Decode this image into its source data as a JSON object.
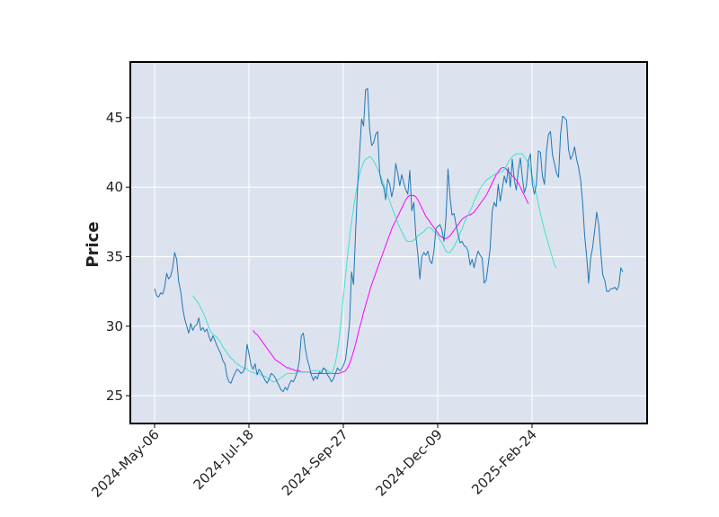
{
  "chart_data": {
    "type": "line",
    "title": "",
    "xlabel": "",
    "ylabel": "Price",
    "x_tick_labels": [
      "2024-May-06",
      "2024-Jul-18",
      "2024-Sep-27",
      "2024-Dec-09",
      "2025-Feb-24"
    ],
    "y_ticks": [
      25,
      30,
      35,
      40,
      45
    ],
    "ylim": [
      23,
      49
    ],
    "grid": true,
    "legend": "none",
    "colors": {
      "background": "#dde3ee",
      "grid": "#ffffff",
      "price": "#1f77b4",
      "ma_short": "#40e0d0",
      "ma_long": "#ff00ff",
      "frame": "#000000"
    },
    "price": [
      32.7,
      32.2,
      32.1,
      32.4,
      32.3,
      32.8,
      33.8,
      33.4,
      33.6,
      34.2,
      35.3,
      34.8,
      33.2,
      32.5,
      31.3,
      30.5,
      30.0,
      29.5,
      30.2,
      29.7,
      30.0,
      30.1,
      30.6,
      29.7,
      29.9,
      29.6,
      29.8,
      29.3,
      28.9,
      29.3,
      29.0,
      28.6,
      28.3,
      28.0,
      27.5,
      27.3,
      26.4,
      26.0,
      25.9,
      26.3,
      26.6,
      26.9,
      26.8,
      26.6,
      26.7,
      27.0,
      28.7,
      28.0,
      27.2,
      26.9,
      27.3,
      26.5,
      26.9,
      26.7,
      26.4,
      26.1,
      25.9,
      26.2,
      26.6,
      26.5,
      26.3,
      26.0,
      25.7,
      25.4,
      25.3,
      25.6,
      25.4,
      25.8,
      26.1,
      26.0,
      26.3,
      26.7,
      27.5,
      29.3,
      29.5,
      28.4,
      27.6,
      27.1,
      26.5,
      26.1,
      26.4,
      26.2,
      26.7,
      26.6,
      27.0,
      26.9,
      26.5,
      26.3,
      26.0,
      26.2,
      26.6,
      27.0,
      26.8,
      26.9,
      27.2,
      27.6,
      28.8,
      30.2,
      33.9,
      33.0,
      36.7,
      40.0,
      42.4,
      44.9,
      44.4,
      47.0,
      47.1,
      44.2,
      43.0,
      43.2,
      43.8,
      44.0,
      41.0,
      40.3,
      40.0,
      39.1,
      40.6,
      40.2,
      39.3,
      40.0,
      41.7,
      41.0,
      40.1,
      40.9,
      40.3,
      39.8,
      39.5,
      41.2,
      38.3,
      38.9,
      36.5,
      35.2,
      33.4,
      35.0,
      35.3,
      35.1,
      35.4,
      34.7,
      34.5,
      35.4,
      37.0,
      37.2,
      37.3,
      36.9,
      36.1,
      37.8,
      41.3,
      39.3,
      38.0,
      38.1,
      37.3,
      36.6,
      36.0,
      36.1,
      35.8,
      35.7,
      35.4,
      34.4,
      34.8,
      34.2,
      34.9,
      35.4,
      35.1,
      34.9,
      33.1,
      33.3,
      34.4,
      35.6,
      38.3,
      38.9,
      38.6,
      40.2,
      39.0,
      39.9,
      40.8,
      40.3,
      41.4,
      40.0,
      42.0,
      40.5,
      39.8,
      41.2,
      42.1,
      40.7,
      39.6,
      40.1,
      41.9,
      42.4,
      40.2,
      39.5,
      40.2,
      42.6,
      42.5,
      40.8,
      40.2,
      42.6,
      43.8,
      44.0,
      42.3,
      41.7,
      41.0,
      40.7,
      43.8,
      45.1,
      45.0,
      44.8,
      42.7,
      42.0,
      42.3,
      42.9,
      42.0,
      41.4,
      40.5,
      38.9,
      36.5,
      35.0,
      33.1,
      34.9,
      35.7,
      36.9,
      38.2,
      37.3,
      35.4,
      33.7,
      33.3,
      32.5,
      32.5,
      32.7,
      32.7,
      32.8,
      32.6,
      32.9,
      34.2,
      33.9
    ],
    "ma_short_start_index": 19,
    "ma_short": [
      32.2,
      32.0,
      31.8,
      31.6,
      31.3,
      31.0,
      30.7,
      30.3,
      29.9,
      29.6,
      29.4,
      29.3,
      29.2,
      29.0,
      28.8,
      28.5,
      28.3,
      28.1,
      27.9,
      27.7,
      27.6,
      27.4,
      27.3,
      27.2,
      27.1,
      27.0,
      27.0,
      26.9,
      26.8,
      26.7,
      26.7,
      26.6,
      26.6,
      26.6,
      26.5,
      26.4,
      26.4,
      26.3,
      26.2,
      26.1,
      26.0,
      26.0,
      26.1,
      26.2,
      26.3,
      26.4,
      26.5,
      26.6,
      26.6,
      26.6,
      26.6,
      26.6,
      26.7,
      26.7,
      26.7,
      26.7,
      26.7,
      26.7,
      26.7,
      26.8,
      26.8,
      26.8,
      26.8,
      26.8,
      26.8,
      26.9,
      26.9,
      26.8,
      26.7,
      26.6,
      26.9,
      27.4,
      28.2,
      29.3,
      30.7,
      32.2,
      33.6,
      35.0,
      36.3,
      37.5,
      38.5,
      39.4,
      40.2,
      40.9,
      41.4,
      41.8,
      42.0,
      42.1,
      42.2,
      42.1,
      41.9,
      41.6,
      41.3,
      41.0,
      40.6,
      40.2,
      39.8,
      39.4,
      39.0,
      38.6,
      38.2,
      37.8,
      37.4,
      37.1,
      36.8,
      36.5,
      36.2,
      36.1,
      36.1,
      36.1,
      36.2,
      36.3,
      36.5,
      36.6,
      36.7,
      36.8,
      37.0,
      37.1,
      37.1,
      37.0,
      36.8,
      36.7,
      36.5,
      36.2,
      36.0,
      35.7,
      35.4,
      35.3,
      35.3,
      35.5,
      35.7,
      36.0,
      36.3,
      36.7,
      37.0,
      37.4,
      37.7,
      38.0,
      38.3,
      38.6,
      39.0,
      39.3,
      39.6,
      39.9,
      40.1,
      40.3,
      40.5,
      40.6,
      40.7,
      40.8,
      40.9,
      41.0,
      41.0,
      41.1,
      41.1,
      41.3,
      41.5,
      41.8,
      42.0,
      42.2,
      42.3,
      42.4,
      42.4,
      42.4,
      42.4,
      42.2,
      42.0,
      41.7,
      41.3,
      40.7,
      40.1,
      39.5,
      38.8,
      38.1,
      37.5,
      36.9,
      36.4,
      35.9,
      35.4,
      34.9,
      34.4,
      34.2
    ],
    "ma_long_start_index": 49,
    "ma_long": [
      29.7,
      29.5,
      29.4,
      29.2,
      29.0,
      28.8,
      28.6,
      28.4,
      28.2,
      28.0,
      27.8,
      27.6,
      27.5,
      27.4,
      27.3,
      27.2,
      27.1,
      27.0,
      27.0,
      26.9,
      26.9,
      26.8,
      26.8,
      26.8,
      26.7,
      26.7,
      26.7,
      26.7,
      26.7,
      26.6,
      26.6,
      26.6,
      26.6,
      26.6,
      26.6,
      26.6,
      26.6,
      26.6,
      26.6,
      26.6,
      26.6,
      26.6,
      26.6,
      26.6,
      26.7,
      26.7,
      26.8,
      27.0,
      27.3,
      27.7,
      28.2,
      28.7,
      29.3,
      29.9,
      30.4,
      31.0,
      31.5,
      32.0,
      32.5,
      33.0,
      33.4,
      33.8,
      34.2,
      34.6,
      35.0,
      35.4,
      35.8,
      36.2,
      36.6,
      37.0,
      37.3,
      37.6,
      37.9,
      38.2,
      38.5,
      38.8,
      39.1,
      39.3,
      39.4,
      39.4,
      39.4,
      39.3,
      39.1,
      38.8,
      38.5,
      38.2,
      37.9,
      37.7,
      37.5,
      37.3,
      37.1,
      36.9,
      36.7,
      36.5,
      36.4,
      36.3,
      36.3,
      36.4,
      36.5,
      36.7,
      36.9,
      37.1,
      37.3,
      37.5,
      37.7,
      37.8,
      37.9,
      38.0,
      38.0,
      38.1,
      38.2,
      38.4,
      38.6,
      38.8,
      39.0,
      39.2,
      39.4,
      39.7,
      40.0,
      40.3,
      40.6,
      40.9,
      41.1,
      41.3,
      41.4,
      41.4,
      41.3,
      41.1,
      41.0,
      40.8,
      40.7,
      40.5,
      40.3,
      40.0,
      39.7,
      39.4,
      39.1,
      38.8
    ]
  }
}
